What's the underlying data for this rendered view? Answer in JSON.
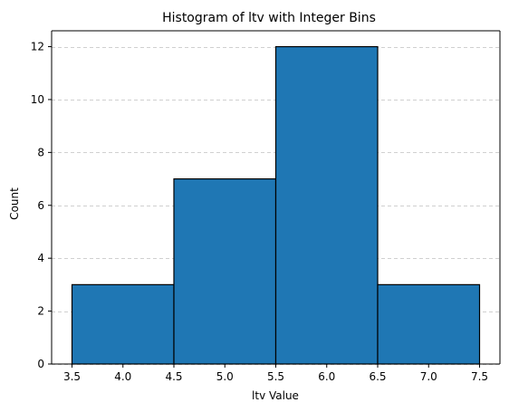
{
  "chart_data": {
    "type": "bar",
    "title": "Histogram of ltv with Integer Bins",
    "xlabel": "ltv Value",
    "ylabel": "Count",
    "bins": [
      {
        "start": 3.5,
        "end": 4.5,
        "count": 3
      },
      {
        "start": 4.5,
        "end": 5.5,
        "count": 7
      },
      {
        "start": 5.5,
        "end": 6.5,
        "count": 12
      },
      {
        "start": 6.5,
        "end": 7.5,
        "count": 3
      }
    ],
    "xlim": [
      3.3,
      7.7
    ],
    "ylim": [
      0,
      12.6
    ],
    "xticks": [
      3.5,
      4.0,
      4.5,
      5.0,
      5.5,
      6.0,
      6.5,
      7.0,
      7.5
    ],
    "xtick_labels": [
      "3.5",
      "4.0",
      "4.5",
      "5.0",
      "5.5",
      "6.0",
      "6.5",
      "7.0",
      "7.5"
    ],
    "yticks": [
      0,
      2,
      4,
      6,
      8,
      10,
      12
    ],
    "ytick_labels": [
      "0",
      "2",
      "4",
      "6",
      "8",
      "10",
      "12"
    ],
    "grid": "y-dashed",
    "colors": {
      "bar_fill": "#1f77b4",
      "bar_edge": "#000000",
      "grid": "#b0b0b0",
      "axis": "#000000"
    }
  }
}
